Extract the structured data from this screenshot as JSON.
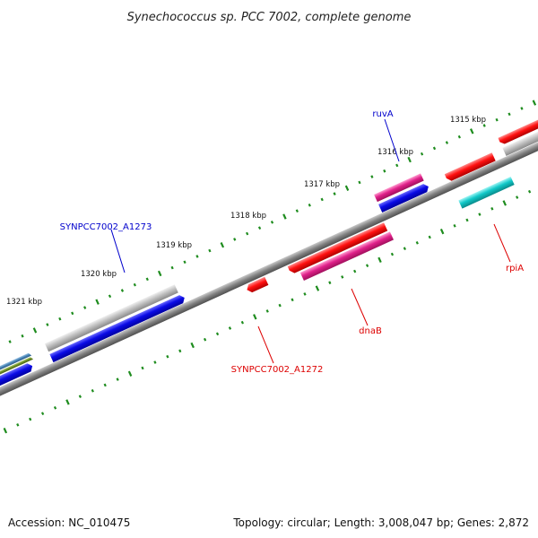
{
  "title": "Synechococcus sp. PCC 7002, complete genome",
  "footer": {
    "accession": "Accession: NC_010475",
    "summary": "Topology: circular; Length: 3,008,047 bp; Genes: 2,872"
  },
  "ticks": [
    {
      "label": "1315 kbp"
    },
    {
      "label": "1316 kbp"
    },
    {
      "label": "1317 kbp"
    },
    {
      "label": "1318 kbp"
    },
    {
      "label": "1319 kbp"
    },
    {
      "label": "1320 kbp"
    },
    {
      "label": "1321 kbp"
    }
  ],
  "gene_labels": [
    {
      "name": "ruvA",
      "color": "#0000cc"
    },
    {
      "name": "SYNPCC7002_A1273",
      "color": "#0000cc"
    },
    {
      "name": "rpiA",
      "color": "#dd0000"
    },
    {
      "name": "dnaB",
      "color": "#dd0000"
    },
    {
      "name": "SYNPCC7002_A1272",
      "color": "#dd0000"
    }
  ],
  "colors": {
    "backbone": "#808080",
    "tick": "#1e8c1e",
    "red": "#ee0000",
    "magenta": "#e0208a",
    "blue": "#0a0ae6",
    "gray": "#b8b8b8",
    "cyan": "#10c8c8",
    "steelblue": "#4682b4",
    "olive": "#6b8e23"
  }
}
